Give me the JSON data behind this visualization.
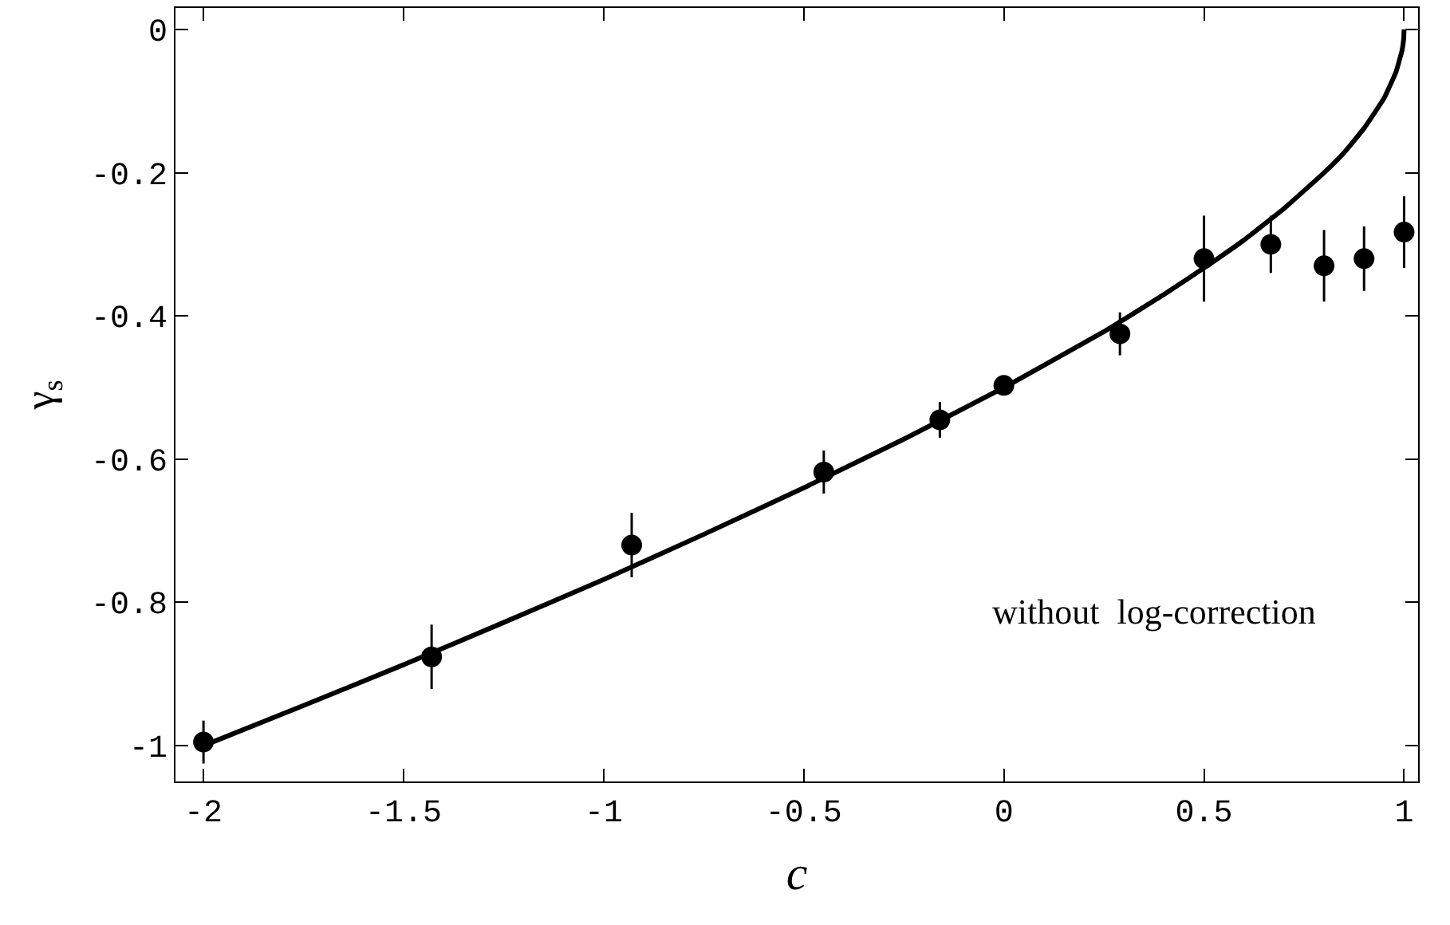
{
  "chart_data": {
    "type": "scatter",
    "xlabel": "c",
    "ylabel": "γ$_{s}$",
    "annotations": [
      "without  log-correction"
    ],
    "xlim": [
      -2.07,
      1.035
    ],
    "ylim": [
      -1.05,
      0.03
    ],
    "xticks": [
      -2,
      -1.5,
      -1,
      -0.5,
      0,
      0.5,
      1
    ],
    "yticks": [
      -1,
      -0.8,
      -0.6,
      -0.4,
      -0.2,
      0
    ],
    "marker": "circle",
    "series": [
      {
        "type": "line",
        "color": "#000000",
        "line_style": "solid",
        "marker": "none",
        "x": [
          -2,
          -1.75,
          -1.5,
          -1.25,
          -1,
          -0.75,
          -0.5,
          -0.25,
          0,
          0.25,
          0.4,
          0.5,
          0.6,
          0.7,
          0.8,
          0.85,
          0.9,
          0.95,
          0.98,
          0.995,
          0.999,
          1
        ],
        "values": [
          -1,
          -0.944,
          -0.887,
          -0.828,
          -0.768,
          -0.705,
          -0.64,
          -0.572,
          -0.5,
          -0.422,
          -0.37,
          -0.333,
          -0.294,
          -0.25,
          -0.2,
          -0.172,
          -0.138,
          -0.096,
          -0.059,
          -0.029,
          -0.013,
          0
        ]
      },
      {
        "color": "#000000",
        "x": [
          -2,
          -1.43,
          -0.93,
          -0.45,
          -0.16,
          0,
          0.29,
          0.5,
          0.667,
          0.8,
          0.9,
          1
        ],
        "values": [
          -0.995,
          -0.876,
          -0.72,
          -0.618,
          -0.545,
          -0.497,
          -0.425,
          -0.32,
          -0.3,
          -0.33,
          -0.32,
          -0.283
        ],
        "errors": [
          0.03,
          0.045,
          0.045,
          0.03,
          0.025,
          0.01,
          0.03,
          0.06,
          0.04,
          0.05,
          0.045,
          0.05
        ]
      }
    ]
  }
}
